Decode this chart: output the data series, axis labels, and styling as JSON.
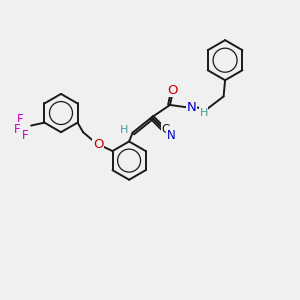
{
  "background_color": "#f0f0f0",
  "bond_color": "#1a1a1a",
  "atom_colors": {
    "N": "#0000cc",
    "O": "#cc0000",
    "F": "#cc00cc",
    "H": "#4a9a9a",
    "C": "#1a1a1a"
  },
  "figsize": [
    3.0,
    3.0
  ],
  "dpi": 100
}
